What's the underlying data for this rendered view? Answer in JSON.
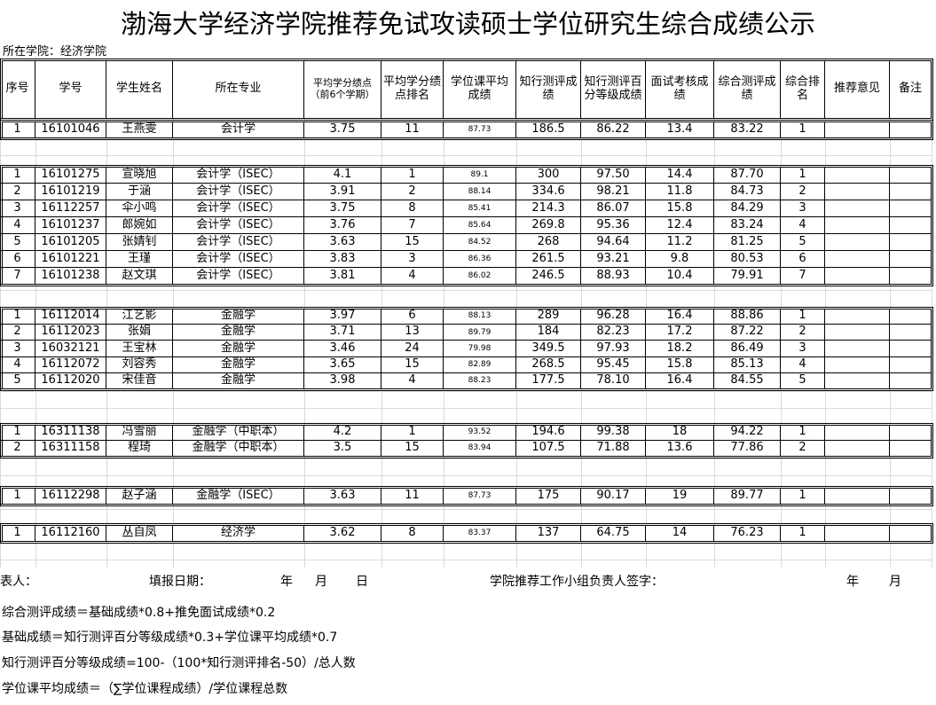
{
  "title": "渤海大学经济学院推荐免试攻读硕士学位研究生综合成绩公示",
  "college_label": "所在学院：经济学院",
  "header": [
    "序号",
    "学号",
    "学生姓名",
    "所在专业",
    "平均学分绩点（前6个学期）",
    "平均学分绩点排名",
    "学位课平均成绩",
    "知行测评成绩",
    "知行测评百分等级成绩",
    "面试考核成绩",
    "综合测评成绩",
    "综合排名",
    "推荐意见",
    "备注"
  ],
  "groups": [
    [
      [
        "1",
        "16101046",
        "王燕雯",
        "会计学",
        "3.75",
        "11",
        "87.73",
        "186.5",
        "86.22",
        "13.4",
        "83.22",
        "1"
      ]
    ],
    [
      [
        "1",
        "16101275",
        "宣晓旭",
        "会计学（ISEC）",
        "4.1",
        "1",
        "89.1",
        "300",
        "97.50",
        "14.4",
        "87.70",
        "1"
      ],
      [
        "2",
        "16101219",
        "于涵",
        "会计学（ISEC）",
        "3.91",
        "2",
        "88.14",
        "334.6",
        "98.21",
        "11.8",
        "84.73",
        "2"
      ],
      [
        "3",
        "16112257",
        "伞小鸣",
        "会计学（ISEC）",
        "3.75",
        "8",
        "85.41",
        "214.3",
        "86.07",
        "15.8",
        "84.29",
        "3"
      ],
      [
        "4",
        "16101237",
        "郎婉如",
        "会计学（ISEC）",
        "3.76",
        "7",
        "85.64",
        "269.8",
        "95.36",
        "12.4",
        "83.24",
        "4"
      ],
      [
        "5",
        "16101205",
        "张婧钊",
        "会计学（ISEC）",
        "3.63",
        "15",
        "84.52",
        "268",
        "94.64",
        "11.2",
        "81.25",
        "5"
      ],
      [
        "6",
        "16101221",
        "王瑾",
        "会计学（ISEC）",
        "3.83",
        "3",
        "86.36",
        "261.5",
        "93.21",
        "9.8",
        "80.53",
        "6"
      ],
      [
        "7",
        "16101238",
        "赵文琪",
        "会计学（ISEC）",
        "3.81",
        "4",
        "86.02",
        "246.5",
        "88.93",
        "10.4",
        "79.91",
        "7"
      ]
    ],
    [
      [
        "1",
        "16112014",
        "江艺影",
        "金融学",
        "3.97",
        "6",
        "88.13",
        "289",
        "96.28",
        "16.4",
        "88.86",
        "1"
      ],
      [
        "2",
        "16112023",
        "张娟",
        "金融学",
        "3.71",
        "13",
        "89.79",
        "184",
        "82.23",
        "17.2",
        "87.22",
        "2"
      ],
      [
        "3",
        "16032121",
        "王宝林",
        "金融学",
        "3.46",
        "24",
        "79.98",
        "349.5",
        "97.93",
        "18.2",
        "86.49",
        "3"
      ],
      [
        "4",
        "16112072",
        "刘容秀",
        "金融学",
        "3.65",
        "15",
        "82.89",
        "268.5",
        "95.45",
        "15.8",
        "85.13",
        "4"
      ],
      [
        "5",
        "16112020",
        "宋佳音",
        "金融学",
        "3.98",
        "4",
        "88.23",
        "177.5",
        "78.10",
        "16.4",
        "84.55",
        "5"
      ]
    ],
    [
      [
        "1",
        "16311138",
        "冯雪丽",
        "金融学（中职本）",
        "4.2",
        "1",
        "93.52",
        "194.6",
        "99.38",
        "18",
        "94.22",
        "1"
      ],
      [
        "2",
        "16311158",
        "程琦",
        "金融学（中职本）",
        "3.5",
        "15",
        "83.94",
        "107.5",
        "71.88",
        "13.6",
        "77.86",
        "2"
      ]
    ],
    [
      [
        "1",
        "16112298",
        "赵子涵",
        "金融学（ISEC）",
        "3.63",
        "11",
        "87.73",
        "175",
        "90.17",
        "19",
        "89.77",
        "1"
      ]
    ],
    [
      [
        "1",
        "16112160",
        "丛自凤",
        "经济学",
        "3.62",
        "8",
        "83.37",
        "137",
        "64.75",
        "14",
        "76.23",
        "1"
      ]
    ]
  ],
  "footer": {
    "preparer": "表人：",
    "date_label": "填报日期：",
    "year": "年",
    "month": "月",
    "day": "日",
    "signature": "学院推荐工作小组负责人签字：",
    "year2": "年",
    "month2": "月"
  },
  "formulas": [
    "综合测评成绩＝基础成绩*0.8+推免面试成绩*0.2",
    "基础成绩＝知行测评百分等级成绩*0.3+学位课平均成绩*0.7",
    "知行测评百分等级成绩=100-（100*知行测评排名-50）/总人数",
    "学位课平均成绩＝（∑学位课程成绩）/学位课程总数"
  ]
}
